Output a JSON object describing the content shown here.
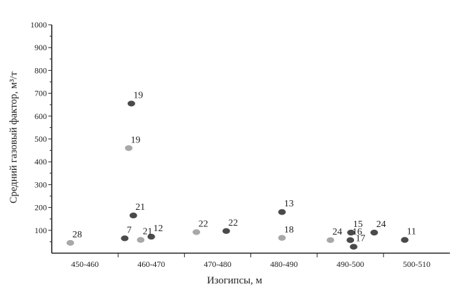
{
  "chart_data": {
    "type": "scatter",
    "title": "",
    "xlabel": "Изогипсы, м",
    "ylabel": "Средний газовый фактор, м³/т",
    "x_categories": [
      "450-460",
      "460-470",
      "470-480",
      "480-490",
      "490-500",
      "500-510"
    ],
    "ylim": [
      0,
      1000
    ],
    "yticks": [
      100,
      200,
      300,
      400,
      500,
      600,
      700,
      800,
      900,
      1000
    ],
    "grid": false,
    "legend": "none",
    "series": [
      {
        "color": "#4a4a4a",
        "points": [
          {
            "x": 1.2,
            "y": 655,
            "label": "19"
          },
          {
            "x": 1.23,
            "y": 165,
            "label": "21"
          },
          {
            "x": 1.1,
            "y": 65,
            "label": "7"
          },
          {
            "x": 1.5,
            "y": 72,
            "label": "12"
          },
          {
            "x": 2.63,
            "y": 97,
            "label": "22"
          },
          {
            "x": 3.47,
            "y": 180,
            "label": "13"
          },
          {
            "x": 4.51,
            "y": 90,
            "label": "15"
          },
          {
            "x": 4.5,
            "y": 57,
            "label": "16"
          },
          {
            "x": 4.55,
            "y": 28,
            "label": "17"
          },
          {
            "x": 4.86,
            "y": 90,
            "label": "24"
          },
          {
            "x": 5.32,
            "y": 58,
            "label": "11"
          }
        ]
      },
      {
        "color": "#a8a8a8",
        "points": [
          {
            "x": 0.28,
            "y": 45,
            "label": "28"
          },
          {
            "x": 1.16,
            "y": 460,
            "label": "19"
          },
          {
            "x": 1.34,
            "y": 58,
            "label": "21"
          },
          {
            "x": 2.18,
            "y": 92,
            "label": "22"
          },
          {
            "x": 3.47,
            "y": 67,
            "label": "18"
          },
          {
            "x": 4.2,
            "y": 57,
            "label": "24"
          }
        ]
      }
    ]
  }
}
